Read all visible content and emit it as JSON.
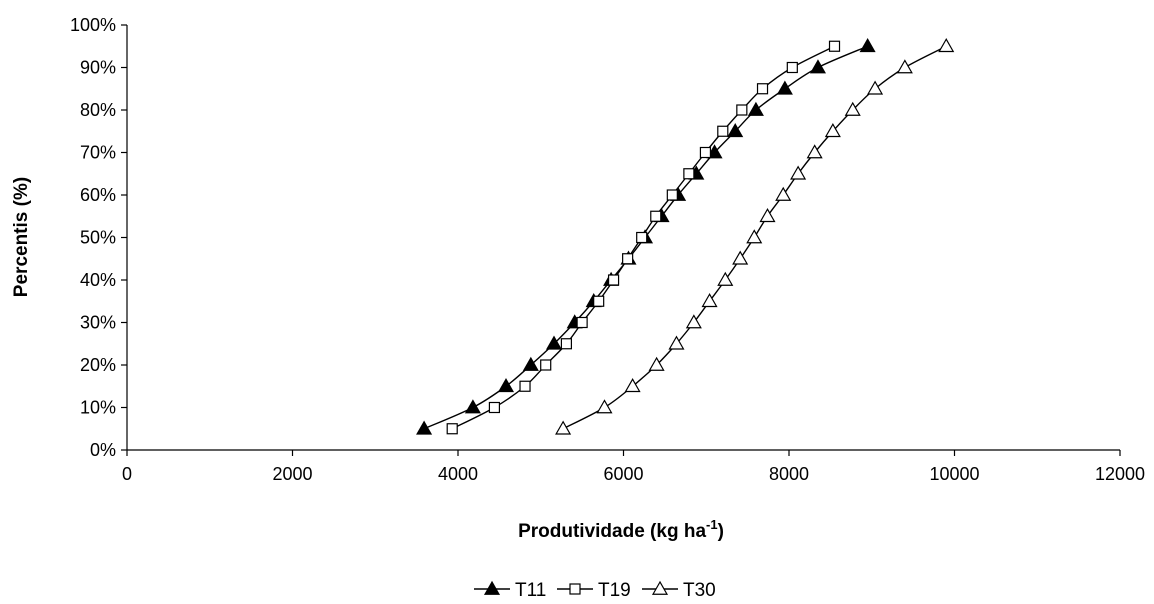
{
  "chart_data": {
    "type": "line",
    "xlabel": "Produtividade (kg ha",
    "xlabel_superscript": "-1",
    "xlabel_suffix": ")",
    "ylabel": "Percentis (%)",
    "xlim": [
      0,
      12000
    ],
    "ylim": [
      0,
      100
    ],
    "x_ticks": [
      0,
      2000,
      4000,
      6000,
      8000,
      10000,
      12000
    ],
    "x_tick_labels": [
      "0",
      "2000",
      "4000",
      "6000",
      "8000",
      "10000",
      "12000"
    ],
    "y_ticks": [
      0,
      10,
      20,
      30,
      40,
      50,
      60,
      70,
      80,
      90,
      100
    ],
    "y_tick_labels": [
      "0%",
      "10%",
      "20%",
      "30%",
      "40%",
      "50%",
      "60%",
      "70%",
      "80%",
      "90%",
      "100%"
    ],
    "grid": false,
    "legend_position": "bottom",
    "series": [
      {
        "name": "T11",
        "marker": "filled-triangle",
        "color": "#000000",
        "points": [
          [
            3590,
            5
          ],
          [
            4180,
            10
          ],
          [
            4580,
            15
          ],
          [
            4880,
            20
          ],
          [
            5160,
            25
          ],
          [
            5410,
            30
          ],
          [
            5640,
            35
          ],
          [
            5850,
            40
          ],
          [
            6060,
            45
          ],
          [
            6260,
            50
          ],
          [
            6460,
            55
          ],
          [
            6660,
            60
          ],
          [
            6880,
            65
          ],
          [
            7100,
            70
          ],
          [
            7350,
            75
          ],
          [
            7600,
            80
          ],
          [
            7950,
            85
          ],
          [
            8350,
            90
          ],
          [
            8950,
            95
          ]
        ]
      },
      {
        "name": "T19",
        "marker": "open-square",
        "color": "#000000",
        "points": [
          [
            3930,
            5
          ],
          [
            4440,
            10
          ],
          [
            4810,
            15
          ],
          [
            5060,
            20
          ],
          [
            5310,
            25
          ],
          [
            5500,
            30
          ],
          [
            5700,
            35
          ],
          [
            5880,
            40
          ],
          [
            6050,
            45
          ],
          [
            6220,
            50
          ],
          [
            6390,
            55
          ],
          [
            6590,
            60
          ],
          [
            6790,
            65
          ],
          [
            6990,
            70
          ],
          [
            7200,
            75
          ],
          [
            7430,
            80
          ],
          [
            7680,
            85
          ],
          [
            8040,
            90
          ],
          [
            8550,
            95
          ]
        ]
      },
      {
        "name": "T30",
        "marker": "open-triangle",
        "color": "#000000",
        "points": [
          [
            5270,
            5
          ],
          [
            5770,
            10
          ],
          [
            6110,
            15
          ],
          [
            6400,
            20
          ],
          [
            6640,
            25
          ],
          [
            6850,
            30
          ],
          [
            7040,
            35
          ],
          [
            7230,
            40
          ],
          [
            7410,
            45
          ],
          [
            7580,
            50
          ],
          [
            7740,
            55
          ],
          [
            7930,
            60
          ],
          [
            8110,
            65
          ],
          [
            8310,
            70
          ],
          [
            8530,
            75
          ],
          [
            8770,
            80
          ],
          [
            9040,
            85
          ],
          [
            9400,
            90
          ],
          [
            9900,
            95
          ]
        ]
      }
    ]
  }
}
